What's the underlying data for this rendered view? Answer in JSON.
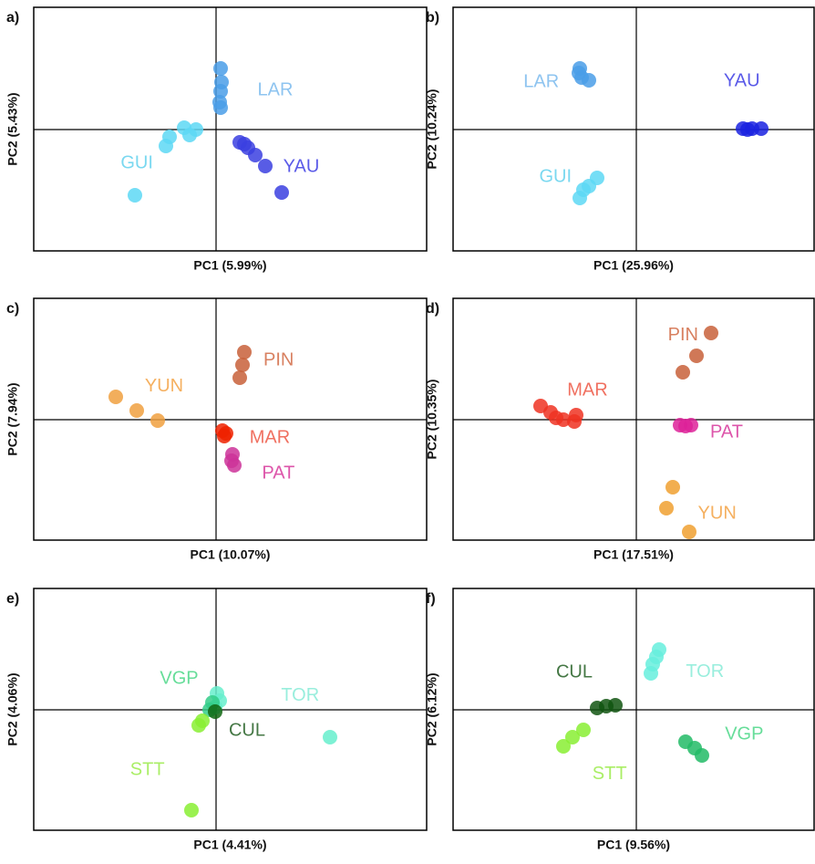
{
  "chart_data": [
    {
      "type": "scatter",
      "panel": "a)",
      "xlabel": "PC1 (5.99%)",
      "ylabel": "PC2 (5.43%)",
      "xlim": [
        -2.0,
        2.31
      ],
      "ylim": [
        -1.33,
        1.34
      ],
      "series": [
        {
          "name": "LAR",
          "color": "#4a9ee8",
          "label_color": "#8ec4f0",
          "x": [
            0.05,
            0.06,
            0.05,
            0.04,
            0.05
          ],
          "y": [
            0.67,
            0.52,
            0.42,
            0.3,
            0.24
          ]
        },
        {
          "name": "GUI",
          "color": "#5dd8f5",
          "label_color": "#7ad8f0",
          "x": [
            -0.89,
            -0.55,
            -0.51,
            -0.29,
            -0.22,
            -0.35
          ],
          "y": [
            -0.72,
            -0.18,
            -0.08,
            -0.06,
            0,
            0.02
          ]
        },
        {
          "name": "YAU",
          "color": "#3b3fe0",
          "label_color": "#5a5ae8",
          "x": [
            0.26,
            0.35,
            0.43,
            0.54,
            0.72,
            0.31
          ],
          "y": [
            -0.14,
            -0.2,
            -0.28,
            -0.4,
            -0.69,
            -0.16
          ]
        }
      ]
    },
    {
      "type": "scatter",
      "panel": "b)",
      "xlabel": "PC1 (25.96%)",
      "ylabel": "PC2 (10.24%)",
      "xlim": [
        -2.01,
        1.95
      ],
      "ylim": [
        -1.33,
        1.34
      ],
      "series": [
        {
          "name": "LAR",
          "color": "#4a9ee8",
          "label_color": "#8ec4f0",
          "x": [
            -0.62,
            -0.6,
            -0.52,
            -0.63
          ],
          "y": [
            0.67,
            0.57,
            0.54,
            0.62
          ]
        },
        {
          "name": "GUI",
          "color": "#5dd8f5",
          "label_color": "#7ad8f0",
          "x": [
            -0.62,
            -0.58,
            -0.52,
            -0.43
          ],
          "y": [
            -0.75,
            -0.66,
            -0.62,
            -0.53
          ]
        },
        {
          "name": "YAU",
          "color": "#1a22e0",
          "label_color": "#5a5ae8",
          "x": [
            1.17,
            1.27,
            1.37,
            1.22
          ],
          "y": [
            0.01,
            0.01,
            0.01,
            0
          ]
        }
      ]
    },
    {
      "type": "scatter",
      "panel": "c)",
      "xlabel": "PC1 (10.07%)",
      "ylabel": "PC2 (7.94%)",
      "xlim": [
        -2.0,
        2.31
      ],
      "ylim": [
        -1.32,
        1.33
      ],
      "series": [
        {
          "name": "PIN",
          "color": "#c8603a",
          "label_color": "#d88060",
          "x": [
            0.31,
            0.29,
            0.26
          ],
          "y": [
            0.74,
            0.6,
            0.46
          ]
        },
        {
          "name": "YUN",
          "color": "#f0a040",
          "label_color": "#f5b060",
          "x": [
            -1.1,
            -0.87,
            -0.64
          ],
          "y": [
            0.25,
            0.1,
            -0.01
          ]
        },
        {
          "name": "MAR",
          "color": "#ee2200",
          "label_color": "#f07060",
          "x": [
            0.07,
            0.09,
            0.11
          ],
          "y": [
            -0.12,
            -0.18,
            -0.15
          ]
        },
        {
          "name": "PAT",
          "color": "#cc3399",
          "label_color": "#dd55aa",
          "x": [
            0.18,
            0.2,
            0.17
          ],
          "y": [
            -0.38,
            -0.5,
            -0.45
          ]
        }
      ]
    },
    {
      "type": "scatter",
      "panel": "d)",
      "xlabel": "PC1 (17.51%)",
      "ylabel": "PC2 (10.35%)",
      "xlim": [
        -2.01,
        1.95
      ],
      "ylim": [
        -1.32,
        1.33
      ],
      "series": [
        {
          "name": "PIN",
          "color": "#c8603a",
          "label_color": "#d88060",
          "x": [
            0.82,
            0.66,
            0.51
          ],
          "y": [
            0.95,
            0.7,
            0.52
          ]
        },
        {
          "name": "MAR",
          "color": "#ee3322",
          "label_color": "#f07060",
          "x": [
            -1.05,
            -0.94,
            -0.88,
            -0.68,
            -0.66,
            -0.8
          ],
          "y": [
            0.15,
            0.08,
            0.02,
            -0.02,
            0.05,
            0
          ]
        },
        {
          "name": "PAT",
          "color": "#dd2299",
          "label_color": "#dd55aa",
          "x": [
            0.48,
            0.54,
            0.6
          ],
          "y": [
            -0.06,
            -0.07,
            -0.06
          ]
        },
        {
          "name": "YUN",
          "color": "#f0a030",
          "label_color": "#f5b060",
          "x": [
            0.4,
            0.33,
            0.58
          ],
          "y": [
            -0.74,
            -0.97,
            -1.23
          ]
        }
      ]
    },
    {
      "type": "scatter",
      "panel": "e)",
      "xlabel": "PC1 (4.41%)",
      "ylabel": "PC2 (4.06%)",
      "xlim": [
        -2.0,
        2.31
      ],
      "ylim": [
        -1.32,
        1.33
      ],
      "series": [
        {
          "name": "TOR",
          "color": "#66eecc",
          "label_color": "#99eedd",
          "x": [
            0.01,
            0.04,
            1.25,
            -0.01
          ],
          "y": [
            0.18,
            0.1,
            -0.3,
            0.03
          ]
        },
        {
          "name": "VGP",
          "color": "#33cc88",
          "label_color": "#66dd99",
          "x": [
            -0.04,
            -0.07
          ],
          "y": [
            0.08,
            0
          ]
        },
        {
          "name": "STT",
          "color": "#88ee33",
          "label_color": "#aaee66",
          "x": [
            -0.27,
            -0.15,
            -0.19
          ],
          "y": [
            -1.1,
            -0.12,
            -0.17
          ]
        },
        {
          "name": "CUL",
          "color": "#116611",
          "label_color": "#447744",
          "x": [
            -0.01
          ],
          "y": [
            -0.02
          ]
        }
      ]
    },
    {
      "type": "scatter",
      "panel": "f)",
      "xlabel": "PC1 (9.56%)",
      "ylabel": "PC2 (6.12%)",
      "xlim": [
        -2.01,
        1.95
      ],
      "ylim": [
        -1.32,
        1.33
      ],
      "series": [
        {
          "name": "TOR",
          "color": "#66eedd",
          "label_color": "#99eedd",
          "x": [
            0.16,
            0.22,
            0.25,
            0.18
          ],
          "y": [
            0.4,
            0.58,
            0.66,
            0.5
          ]
        },
        {
          "name": "CUL",
          "color": "#115511",
          "label_color": "#447744",
          "x": [
            -0.43,
            -0.33,
            -0.23
          ],
          "y": [
            0.02,
            0.04,
            0.05
          ]
        },
        {
          "name": "STT",
          "color": "#88ee33",
          "label_color": "#aaee66",
          "x": [
            -0.8,
            -0.7,
            -0.58
          ],
          "y": [
            -0.4,
            -0.3,
            -0.22
          ]
        },
        {
          "name": "VGP",
          "color": "#22bb66",
          "label_color": "#66dd99",
          "x": [
            0.54,
            0.64,
            0.72
          ],
          "y": [
            -0.35,
            -0.42,
            -0.5
          ]
        }
      ]
    }
  ]
}
